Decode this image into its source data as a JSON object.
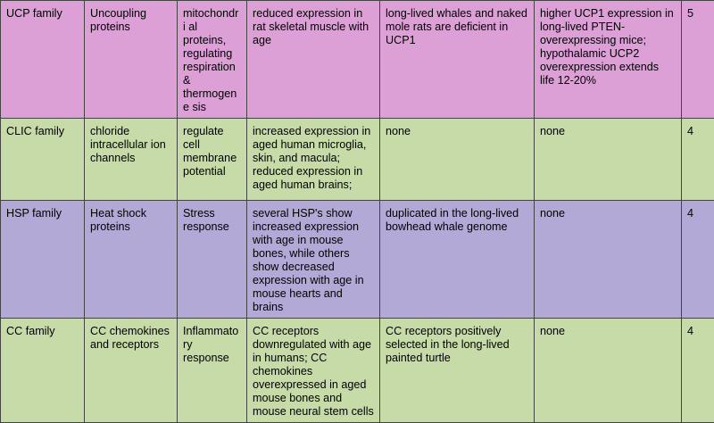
{
  "rows": [
    {
      "color": "#dc9fd6",
      "family": "UCP family",
      "name": "Uncoupling proteins",
      "function": "mitochondri al proteins, regulating respiration & thermogene sis",
      "aging_expression": "reduced expression in rat skeletal muscle with age",
      "long_lived_species": "long-lived whales and naked mole rats are deficient in UCP1",
      "lifespan_effect": "higher UCP1 expression in long-lived PTEN-overexpressing mice; hypothalamic UCP2 overexpression extends life 12-20%",
      "score": "5"
    },
    {
      "color": "#c6dba8",
      "family": "CLIC family",
      "name": "chloride intracellular ion channels",
      "function": "regulate cell membrane potential",
      "aging_expression": "increased expression in aged human microglia, skin, and macula; reduced expression in aged human brains;",
      "long_lived_species": "none",
      "lifespan_effect": "none",
      "score": "4"
    },
    {
      "color": "#b3a9d6",
      "family": "HSP family",
      "name": "Heat shock proteins",
      "function": "Stress response",
      "aging_expression": "several HSP's show increased expression with age in mouse bones, while others show decreased expression with age in mouse hearts and brains",
      "long_lived_species": "duplicated in the long-lived bowhead whale genome",
      "lifespan_effect": "none",
      "score": "4"
    },
    {
      "color": "#c6dba8",
      "family": "CC family",
      "name": "CC chemokines and receptors",
      "function": "Inflammatory response",
      "aging_expression": "CC receptors downregulated with age in humans; CC chemokines overexpressed in aged mouse bones and mouse neural stem cells",
      "long_lived_species": "CC receptors positively selected in the long-lived painted turtle",
      "lifespan_effect": "none",
      "score": "4"
    }
  ]
}
